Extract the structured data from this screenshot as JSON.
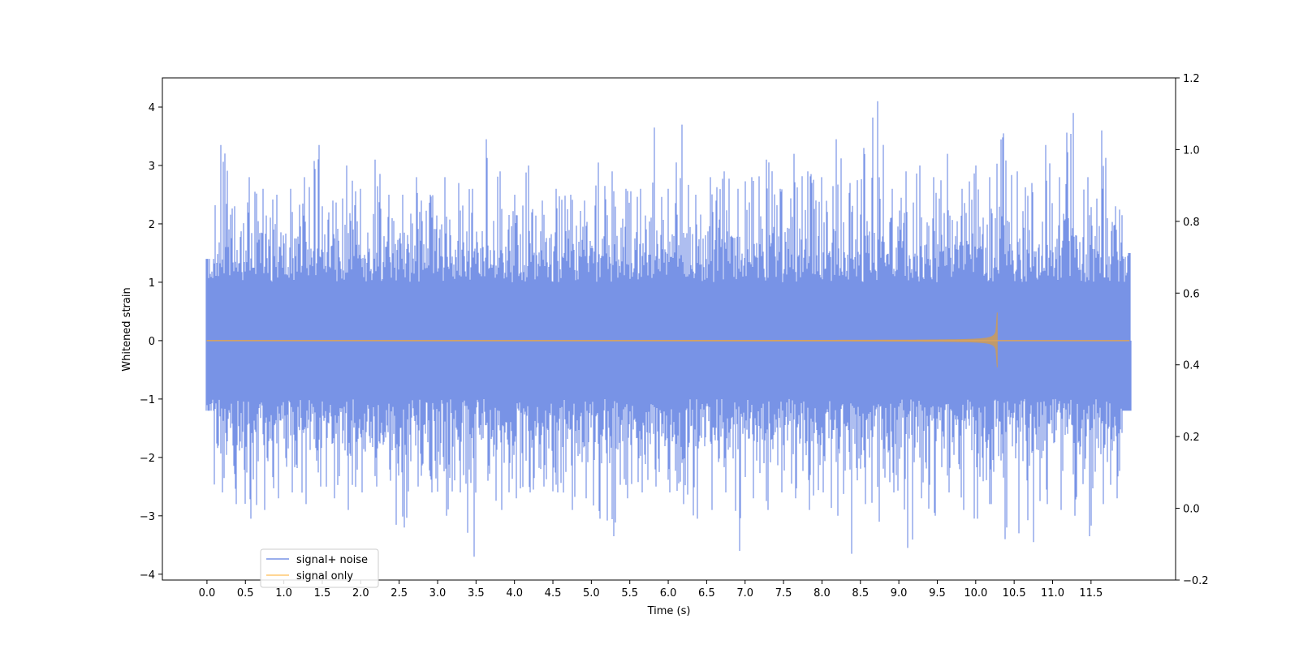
{
  "chart_data": {
    "type": "line",
    "title": "",
    "xlabel": "Time (s)",
    "ylabel": "Whitened strain",
    "xlim": [
      -0.58,
      12.6
    ],
    "ylim": [
      -4.1,
      4.5
    ],
    "y2lim": [
      -0.2,
      1.2
    ],
    "x_ticks": [
      0.0,
      0.5,
      1.0,
      1.5,
      2.0,
      2.5,
      3.0,
      3.5,
      4.0,
      4.5,
      5.0,
      5.5,
      6.0,
      6.5,
      7.0,
      7.5,
      8.0,
      8.5,
      9.0,
      9.5,
      10.0,
      10.5,
      11.0,
      11.5
    ],
    "x_tick_labels": [
      "0.0",
      "0.5",
      "1.0",
      "1.5",
      "2.0",
      "2.5",
      "3.0",
      "3.5",
      "4.0",
      "4.5",
      "5.0",
      "5.5",
      "6.0",
      "6.5",
      "7.0",
      "7.5",
      "8.0",
      "8.5",
      "9.0",
      "9.5",
      "10.0",
      "10.5",
      "11.0",
      "11.5"
    ],
    "y_ticks": [
      -4,
      -3,
      -2,
      -1,
      0,
      1,
      2,
      3,
      4
    ],
    "y_tick_labels": [
      "−4",
      "−3",
      "−2",
      "−1",
      "0",
      "1",
      "2",
      "3",
      "4"
    ],
    "y2_ticks": [
      -0.2,
      0.0,
      0.2,
      0.4,
      0.6,
      0.8,
      1.0,
      1.2
    ],
    "y2_tick_labels": [
      "−0.2",
      "0.0",
      "0.2",
      "0.4",
      "0.6",
      "0.8",
      "1.0",
      "1.2"
    ],
    "grid": false,
    "legend_position": "lower-left",
    "series": [
      {
        "name": "signal+ noise",
        "color": "#7893e6",
        "t_start": 0.0,
        "t_end": 12.0,
        "envelope_min": [
          -1.2,
          -2.6,
          -2.8,
          -3.05,
          -2.9,
          -2.7,
          -2.6,
          -2.8,
          -2.5,
          -2.7,
          -2.9,
          -2.6,
          -2.5,
          -2.4,
          -3.2,
          -2.5,
          -2.6,
          -3.0,
          -2.6,
          -3.7,
          -2.4,
          -2.9,
          -2.7,
          -2.6,
          -2.5,
          -2.6,
          -2.9,
          -2.7,
          -3.05,
          -3.35,
          -2.7,
          -2.6,
          -2.5,
          -2.6,
          -2.8,
          -3.05,
          -2.9,
          -2.6,
          -3.6,
          -2.7,
          -2.9,
          -2.6,
          -2.7,
          -2.9,
          -2.6,
          -3.0,
          -3.65,
          -2.8,
          -3.1,
          -2.6,
          -3.55,
          -2.7,
          -3.0,
          -2.6,
          -2.9,
          -3.05,
          -2.8,
          -3.4,
          -3.3,
          -3.45,
          -2.8,
          -2.9,
          -3.0,
          -3.35,
          -2.8,
          -2.7,
          -1.2
        ],
        "envelope_max": [
          1.4,
          3.35,
          2.3,
          2.8,
          2.6,
          2.5,
          2.6,
          2.8,
          3.35,
          2.4,
          3.0,
          2.6,
          3.1,
          2.5,
          2.5,
          2.8,
          2.5,
          2.8,
          2.7,
          2.6,
          3.45,
          2.9,
          2.5,
          3.0,
          2.4,
          2.6,
          2.5,
          2.4,
          3.05,
          2.9,
          2.6,
          2.6,
          3.65,
          2.6,
          3.7,
          2.5,
          2.8,
          2.9,
          2.6,
          2.8,
          3.1,
          2.6,
          3.2,
          2.9,
          2.8,
          3.45,
          2.7,
          3.3,
          4.1,
          2.6,
          2.9,
          3.0,
          2.8,
          3.2,
          2.6,
          3.0,
          2.8,
          3.55,
          2.9,
          2.7,
          3.35,
          2.8,
          3.9,
          2.8,
          3.6,
          2.3,
          1.5
        ]
      },
      {
        "name": "signal only",
        "color": "#ffc870",
        "t_start": 0.0,
        "t_end": 12.0,
        "chirp_peak_time": 10.28,
        "chirp_peak_amplitude": 0.48
      }
    ]
  }
}
